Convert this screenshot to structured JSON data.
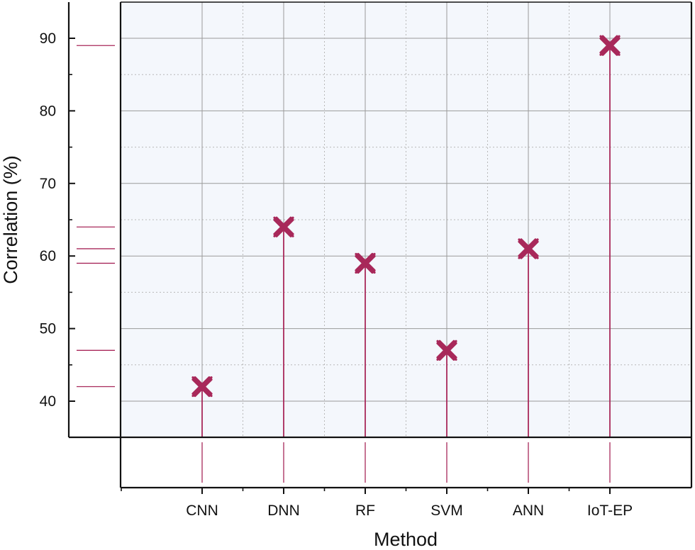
{
  "chart_data": {
    "type": "stem",
    "title": "",
    "xlabel": "Method",
    "ylabel": "Correlation (%)",
    "categories": [
      "CNN",
      "DNN",
      "RF",
      "SVM",
      "ANN",
      "IoT-EP"
    ],
    "values": [
      42,
      64,
      59,
      47,
      61,
      89
    ],
    "ylim": [
      35,
      95
    ],
    "yticks": [
      40,
      50,
      60,
      70,
      80,
      90
    ],
    "yticks_minor": [
      45,
      55,
      65,
      75,
      85
    ],
    "grid": true,
    "marginal_rug_left": true,
    "marginal_rug_bottom": true
  },
  "colors": {
    "series": "#A8285A",
    "grid": "#9a9a9a",
    "plot_bg": "#f4f7fc",
    "axis": "#111111"
  }
}
